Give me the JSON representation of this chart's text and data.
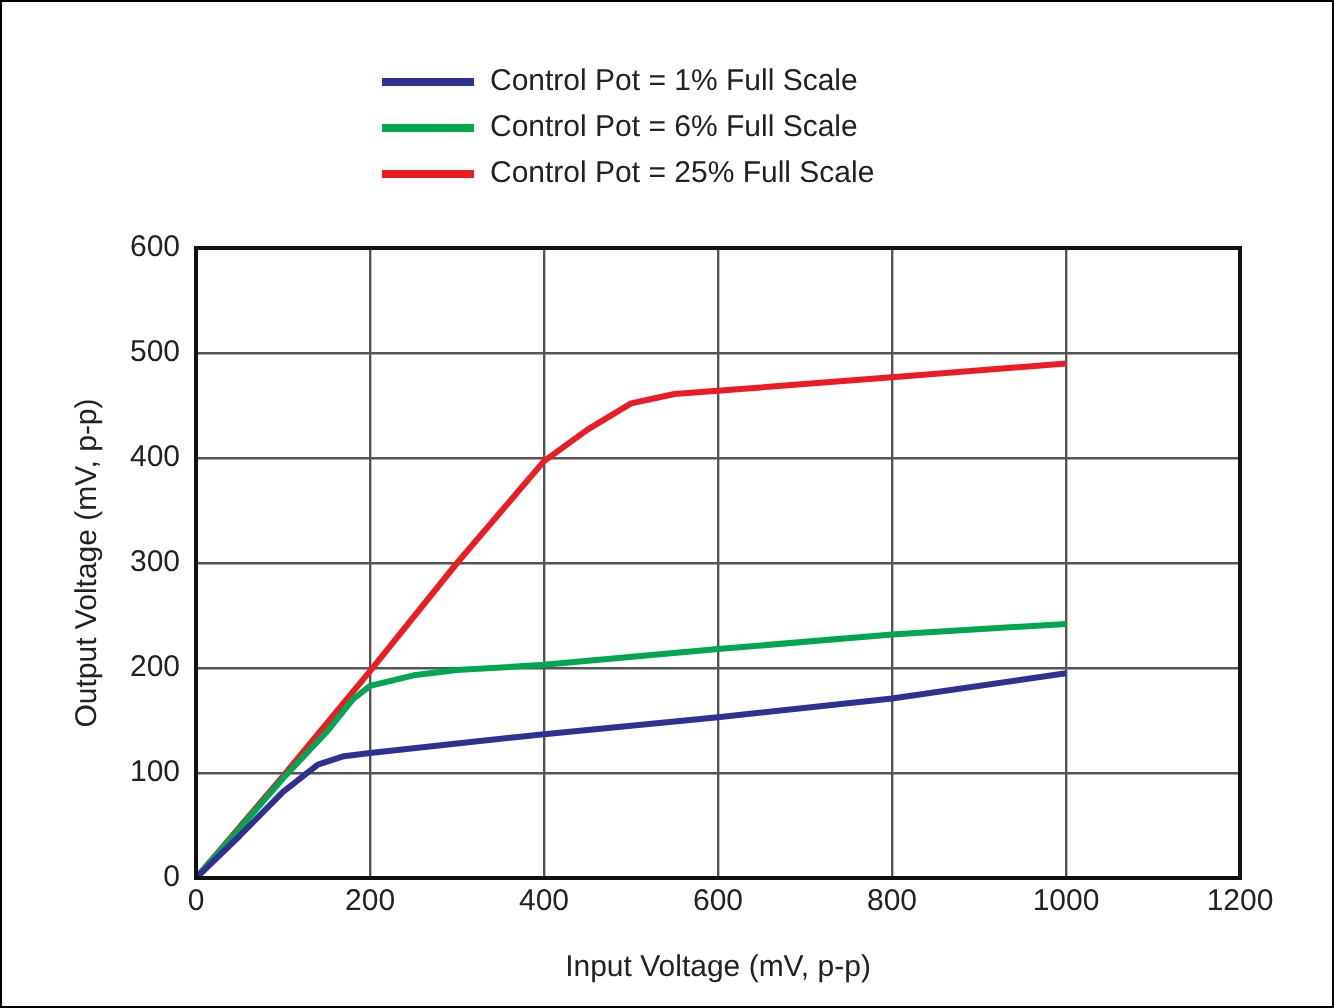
{
  "chart_data": {
    "type": "line",
    "xlabel": "Input Voltage (mV, p-p)",
    "ylabel": "Output Voltage (mV, p-p)",
    "xlim": [
      0,
      1200
    ],
    "xticks": [
      0,
      200,
      400,
      600,
      800,
      1000,
      1200
    ],
    "ylim": [
      0,
      600
    ],
    "yticks": [
      0,
      100,
      200,
      300,
      400,
      500,
      600
    ],
    "grid": true,
    "legend": "top",
    "marker": "none",
    "series": [
      {
        "name": "Control Pot = 1% Full Scale",
        "color": "#2e3192",
        "x": [
          0,
          50,
          100,
          140,
          170,
          200,
          300,
          400,
          600,
          800,
          1000
        ],
        "values": [
          0,
          40,
          82,
          108,
          116,
          119,
          128,
          137,
          153,
          171,
          195
        ]
      },
      {
        "name": "Control Pot = 6% Full Scale",
        "color": "#00a651",
        "x": [
          0,
          50,
          100,
          150,
          180,
          200,
          250,
          300,
          400,
          600,
          800,
          1000
        ],
        "values": [
          0,
          47,
          95,
          139,
          170,
          183,
          193,
          198,
          203,
          218,
          232,
          242
        ]
      },
      {
        "name": "Control Pot = 25% Full Scale",
        "color": "#ed1c24",
        "x": [
          0,
          100,
          200,
          300,
          400,
          450,
          500,
          550,
          600,
          800,
          1000
        ],
        "values": [
          0,
          97,
          197,
          300,
          397,
          427,
          452,
          461,
          464,
          477,
          490
        ]
      }
    ]
  }
}
